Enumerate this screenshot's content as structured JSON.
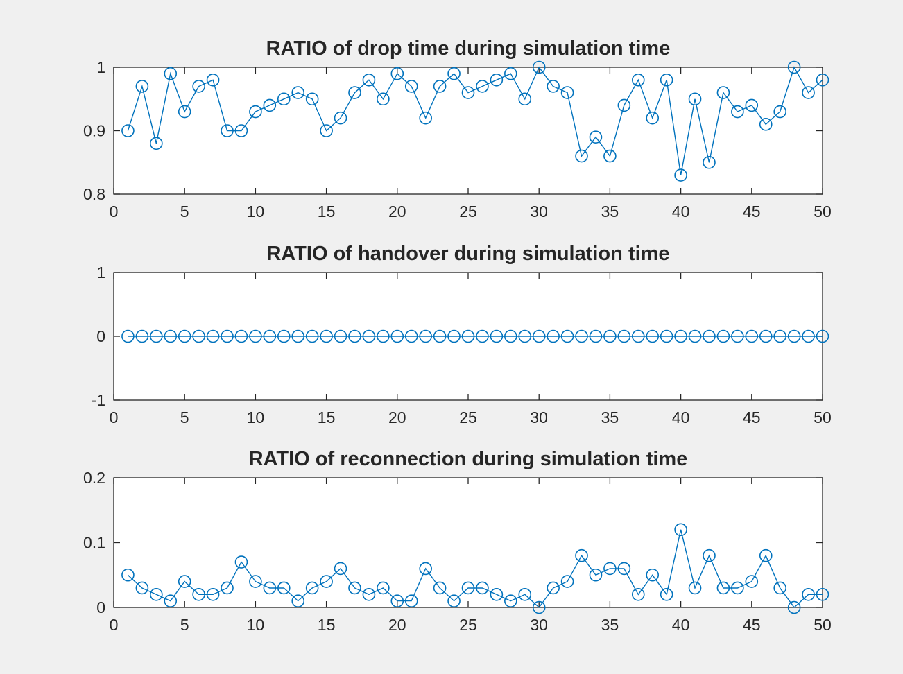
{
  "colors": {
    "background": "#f0f0f0",
    "axes_bg": "#ffffff",
    "axis": "#262626",
    "series": "#0072bd"
  },
  "chart_data": [
    {
      "type": "line",
      "marker": "circle",
      "title": "RATIO of drop time during simulation time",
      "xlabel": "",
      "ylabel": "",
      "xlim": [
        0,
        50
      ],
      "ylim": [
        0.8,
        1
      ],
      "xticks": [
        0,
        5,
        10,
        15,
        20,
        25,
        30,
        35,
        40,
        45,
        50
      ],
      "xtick_labels": [
        "0",
        "5",
        "10",
        "15",
        "20",
        "25",
        "30",
        "35",
        "40",
        "45",
        "50"
      ],
      "yticks": [
        0.8,
        0.9,
        1
      ],
      "ytick_labels": [
        "0.8",
        "0.9",
        "1"
      ],
      "x": [
        1,
        2,
        3,
        4,
        5,
        6,
        7,
        8,
        9,
        10,
        11,
        12,
        13,
        14,
        15,
        16,
        17,
        18,
        19,
        20,
        21,
        22,
        23,
        24,
        25,
        26,
        27,
        28,
        29,
        30,
        31,
        32,
        33,
        34,
        35,
        36,
        37,
        38,
        39,
        40,
        41,
        42,
        43,
        44,
        45,
        46,
        47,
        48,
        49,
        50
      ],
      "y": [
        0.9,
        0.97,
        0.88,
        0.99,
        0.93,
        0.97,
        0.98,
        0.9,
        0.9,
        0.93,
        0.94,
        0.95,
        0.96,
        0.95,
        0.9,
        0.92,
        0.96,
        0.98,
        0.95,
        0.99,
        0.97,
        0.92,
        0.97,
        0.99,
        0.96,
        0.97,
        0.98,
        0.99,
        0.95,
        1.0,
        0.97,
        0.96,
        0.86,
        0.89,
        0.86,
        0.94,
        0.98,
        0.92,
        0.98,
        0.83,
        0.95,
        0.85,
        0.96,
        0.93,
        0.94,
        0.91,
        0.93,
        1.0,
        0.96,
        0.98
      ]
    },
    {
      "type": "line",
      "marker": "circle",
      "title": "RATIO of handover during simulation time",
      "xlabel": "",
      "ylabel": "",
      "xlim": [
        0,
        50
      ],
      "ylim": [
        -1,
        1
      ],
      "xticks": [
        0,
        5,
        10,
        15,
        20,
        25,
        30,
        35,
        40,
        45,
        50
      ],
      "xtick_labels": [
        "0",
        "5",
        "10",
        "15",
        "20",
        "25",
        "30",
        "35",
        "40",
        "45",
        "50"
      ],
      "yticks": [
        -1,
        0,
        1
      ],
      "ytick_labels": [
        "-1",
        "0",
        "1"
      ],
      "x": [
        1,
        2,
        3,
        4,
        5,
        6,
        7,
        8,
        9,
        10,
        11,
        12,
        13,
        14,
        15,
        16,
        17,
        18,
        19,
        20,
        21,
        22,
        23,
        24,
        25,
        26,
        27,
        28,
        29,
        30,
        31,
        32,
        33,
        34,
        35,
        36,
        37,
        38,
        39,
        40,
        41,
        42,
        43,
        44,
        45,
        46,
        47,
        48,
        49,
        50
      ],
      "y": [
        0,
        0,
        0,
        0,
        0,
        0,
        0,
        0,
        0,
        0,
        0,
        0,
        0,
        0,
        0,
        0,
        0,
        0,
        0,
        0,
        0,
        0,
        0,
        0,
        0,
        0,
        0,
        0,
        0,
        0,
        0,
        0,
        0,
        0,
        0,
        0,
        0,
        0,
        0,
        0,
        0,
        0,
        0,
        0,
        0,
        0,
        0,
        0,
        0,
        0
      ]
    },
    {
      "type": "line",
      "marker": "circle",
      "title": "RATIO of reconnection during simulation time",
      "xlabel": "",
      "ylabel": "",
      "xlim": [
        0,
        50
      ],
      "ylim": [
        0,
        0.2
      ],
      "xticks": [
        0,
        5,
        10,
        15,
        20,
        25,
        30,
        35,
        40,
        45,
        50
      ],
      "xtick_labels": [
        "0",
        "5",
        "10",
        "15",
        "20",
        "25",
        "30",
        "35",
        "40",
        "45",
        "50"
      ],
      "yticks": [
        0,
        0.1,
        0.2
      ],
      "ytick_labels": [
        "0",
        "0.1",
        "0.2"
      ],
      "x": [
        1,
        2,
        3,
        4,
        5,
        6,
        7,
        8,
        9,
        10,
        11,
        12,
        13,
        14,
        15,
        16,
        17,
        18,
        19,
        20,
        21,
        22,
        23,
        24,
        25,
        26,
        27,
        28,
        29,
        30,
        31,
        32,
        33,
        34,
        35,
        36,
        37,
        38,
        39,
        40,
        41,
        42,
        43,
        44,
        45,
        46,
        47,
        48,
        49,
        50
      ],
      "y": [
        0.05,
        0.03,
        0.02,
        0.01,
        0.04,
        0.02,
        0.02,
        0.03,
        0.07,
        0.04,
        0.03,
        0.03,
        0.01,
        0.03,
        0.04,
        0.06,
        0.03,
        0.02,
        0.03,
        0.01,
        0.01,
        0.06,
        0.03,
        0.01,
        0.03,
        0.03,
        0.02,
        0.01,
        0.02,
        0.0,
        0.03,
        0.04,
        0.08,
        0.05,
        0.06,
        0.06,
        0.02,
        0.05,
        0.02,
        0.12,
        0.03,
        0.08,
        0.03,
        0.03,
        0.04,
        0.08,
        0.03,
        0.0,
        0.02,
        0.02
      ]
    }
  ]
}
